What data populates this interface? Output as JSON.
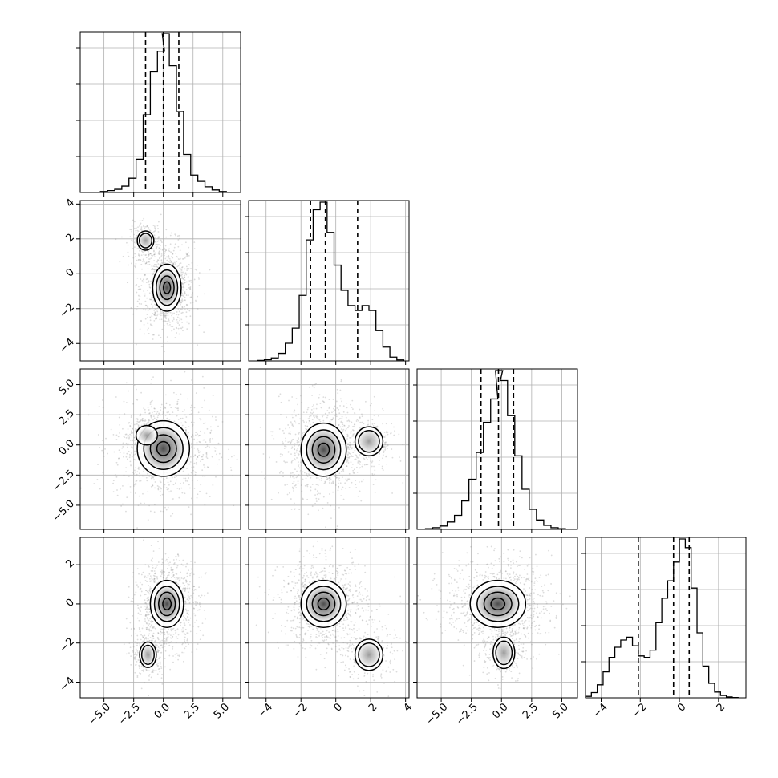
{
  "chart_data": {
    "type": "corner",
    "parameters": 4,
    "grid": true,
    "style": {
      "scatter_color": "#9a9a9a",
      "hist_color": "#000000",
      "contour_color": "#000000",
      "quantile_line_style": "dashed",
      "density_ramp": [
        "#ffffff",
        "#2f2f2f"
      ]
    },
    "axes": [
      {
        "range": [
          -7.0,
          6.5
        ],
        "ticks": [
          -5.0,
          -2.5,
          0.0,
          2.5,
          5.0
        ],
        "tick_labels": [
          "−5.0",
          "−2.5",
          "0.0",
          "2.5",
          "5.0"
        ]
      },
      {
        "range": [
          -5.0,
          4.2
        ],
        "ticks": [
          -4,
          -2,
          0,
          2,
          4
        ],
        "tick_labels": [
          "−4",
          "−2",
          "0",
          "2",
          "4"
        ]
      },
      {
        "range": [
          -7.0,
          6.3
        ],
        "ticks": [
          -5.0,
          -2.5,
          0.0,
          2.5,
          5.0
        ],
        "tick_labels": [
          "−5.0",
          "−2.5",
          "0.0",
          "2.5",
          "5.0"
        ]
      },
      {
        "range": [
          -4.8,
          3.4
        ],
        "ticks": [
          -4,
          -2,
          0,
          2
        ],
        "tick_labels": [
          "−4",
          "−2",
          "0",
          "2"
        ]
      }
    ],
    "histograms": [
      {
        "parameter": 0,
        "quantiles": [
          -1.5,
          0.0,
          1.3
        ],
        "bin_centers": [
          -5.6,
          -5.0,
          -4.4,
          -3.8,
          -3.2,
          -2.6,
          -2.0,
          -1.4,
          -0.8,
          -0.2,
          0.2,
          0.8,
          1.4,
          2.0,
          2.6,
          3.2,
          3.8,
          4.4,
          5.0
        ],
        "counts": [
          1,
          3,
          6,
          10,
          20,
          45,
          105,
          245,
          380,
          445,
          500,
          400,
          255,
          120,
          55,
          35,
          18,
          8,
          3
        ]
      },
      {
        "parameter": 1,
        "quantiles": [
          -1.45,
          -0.6,
          1.25
        ],
        "bin_centers": [
          -4.3,
          -3.9,
          -3.5,
          -3.1,
          -2.7,
          -2.3,
          -1.9,
          -1.5,
          -1.1,
          -0.7,
          -0.3,
          0.1,
          0.5,
          0.9,
          1.3,
          1.7,
          2.1,
          2.5,
          2.9,
          3.3,
          3.7
        ],
        "counts": [
          2,
          5,
          12,
          30,
          70,
          130,
          260,
          480,
          600,
          630,
          510,
          380,
          280,
          220,
          200,
          220,
          200,
          120,
          55,
          15,
          4
        ]
      },
      {
        "parameter": 2,
        "quantiles": [
          -1.7,
          -0.25,
          1.0
        ],
        "bin_centers": [
          -6.0,
          -5.4,
          -4.8,
          -4.2,
          -3.6,
          -3.0,
          -2.4,
          -1.8,
          -1.2,
          -0.6,
          -0.2,
          0.2,
          0.8,
          1.4,
          2.0,
          2.6,
          3.2,
          3.8,
          4.4,
          5.0
        ],
        "counts": [
          2,
          5,
          10,
          22,
          42,
          85,
          150,
          230,
          320,
          390,
          475,
          445,
          340,
          220,
          120,
          60,
          28,
          12,
          5,
          2
        ]
      },
      {
        "parameter": 3,
        "quantiles": [
          -2.1,
          -0.3,
          0.5
        ],
        "bin_centers": [
          -4.65,
          -4.35,
          -4.05,
          -3.75,
          -3.45,
          -3.15,
          -2.85,
          -2.55,
          -2.25,
          -1.95,
          -1.65,
          -1.35,
          -1.05,
          -0.75,
          -0.45,
          -0.15,
          0.15,
          0.45,
          0.75,
          1.05,
          1.35,
          1.65,
          1.95,
          2.25,
          2.55,
          2.85
        ],
        "counts": [
          5,
          18,
          45,
          90,
          140,
          175,
          200,
          210,
          180,
          145,
          140,
          165,
          260,
          345,
          405,
          470,
          550,
          520,
          380,
          225,
          110,
          50,
          20,
          8,
          3,
          1
        ]
      }
    ],
    "pairs": [
      {
        "x_param": 0,
        "y_param": 1,
        "modes": [
          {
            "x": 0.3,
            "y": -0.8,
            "rx": 1.2,
            "ry": 1.35,
            "level": 4
          },
          {
            "x": -1.5,
            "y": 1.9,
            "rx": 0.7,
            "ry": 0.55,
            "level": 2
          }
        ]
      },
      {
        "x_param": 0,
        "y_param": 2,
        "modes": [
          {
            "x": 0.0,
            "y": -0.3,
            "rx": 2.2,
            "ry": 2.3,
            "level": 4
          },
          {
            "x": -1.4,
            "y": 0.8,
            "rx": 0.9,
            "ry": 0.8,
            "level": 1
          }
        ]
      },
      {
        "x_param": 1,
        "y_param": 2,
        "modes": [
          {
            "x": -0.7,
            "y": -0.4,
            "rx": 1.3,
            "ry": 2.2,
            "level": 4
          },
          {
            "x": 1.9,
            "y": 0.3,
            "rx": 0.8,
            "ry": 1.2,
            "level": 2
          }
        ]
      },
      {
        "x_param": 0,
        "y_param": 3,
        "modes": [
          {
            "x": 0.3,
            "y": 0.0,
            "rx": 1.4,
            "ry": 1.2,
            "level": 4
          },
          {
            "x": -1.3,
            "y": -2.6,
            "rx": 0.7,
            "ry": 0.65,
            "level": 2
          }
        ]
      },
      {
        "x_param": 1,
        "y_param": 3,
        "modes": [
          {
            "x": -0.7,
            "y": 0.0,
            "rx": 1.3,
            "ry": 1.2,
            "level": 4
          },
          {
            "x": 1.9,
            "y": -2.6,
            "rx": 0.8,
            "ry": 0.8,
            "level": 2
          }
        ]
      },
      {
        "x_param": 2,
        "y_param": 3,
        "modes": [
          {
            "x": -0.3,
            "y": 0.0,
            "rx": 2.3,
            "ry": 1.2,
            "level": 4
          },
          {
            "x": 0.2,
            "y": -2.5,
            "rx": 0.9,
            "ry": 0.8,
            "level": 2
          }
        ]
      }
    ]
  }
}
